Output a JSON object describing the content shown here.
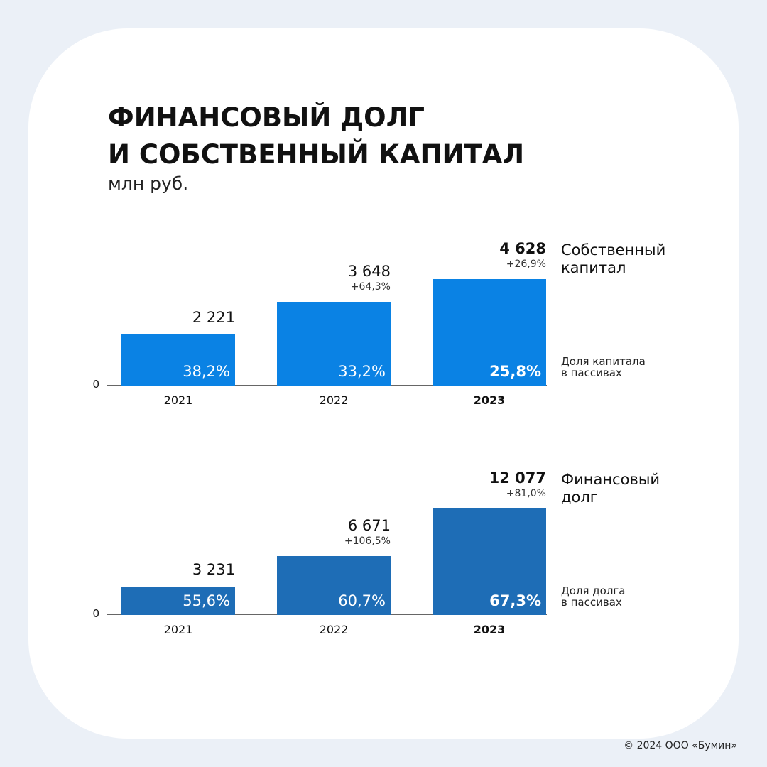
{
  "title": "ФИНАНСОВЫЙ ДОЛГ\nИ СОБСТВЕННЫЙ КАПИТАЛ",
  "subtitle": "млн руб.",
  "copyright": "© 2024 ООО «Бумин»",
  "chart_data": [
    {
      "type": "bar",
      "series_name": "Собственный\nкапитал",
      "note": "Доля капитала\nв пассивах",
      "categories": [
        "2021",
        "2022",
        "2023"
      ],
      "values": [
        2221,
        3648,
        4628
      ],
      "value_labels": [
        "2 221",
        "3 648",
        "4 628"
      ],
      "changes": [
        null,
        64.3,
        26.9
      ],
      "change_labels": [
        null,
        "+64,3%",
        "+26,9%"
      ],
      "shares": [
        38.2,
        33.2,
        25.8
      ],
      "share_labels": [
        "38,2%",
        "33,2%",
        "25,8%"
      ],
      "color": "#0a82e4",
      "ylim": [
        0,
        5000
      ],
      "yticks": [
        0
      ]
    },
    {
      "type": "bar",
      "series_name": "Финансовый\nдолг",
      "note": "Доля долга\nв пассивах",
      "categories": [
        "2021",
        "2022",
        "2023"
      ],
      "values": [
        3231,
        6671,
        12077
      ],
      "value_labels": [
        "3 231",
        "6 671",
        "12 077"
      ],
      "changes": [
        null,
        106.5,
        81.0
      ],
      "change_labels": [
        null,
        "+106,5%",
        "+81,0%"
      ],
      "shares": [
        55.6,
        60.7,
        67.3
      ],
      "share_labels": [
        "55,6%",
        "60,7%",
        "67,3%"
      ],
      "color": "#1e6db6",
      "ylim": [
        0,
        13000
      ],
      "yticks": [
        0
      ]
    }
  ]
}
